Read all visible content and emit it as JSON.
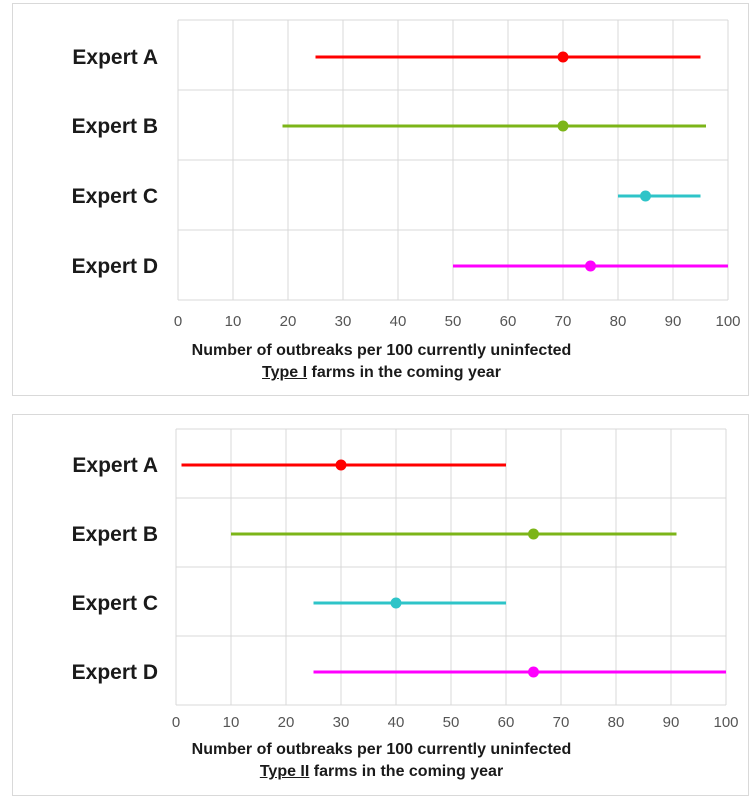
{
  "charts": [
    {
      "id": "type1",
      "xlabel_line1": "Number of outbreaks per 100 currently uninfected",
      "xlabel_type": "Type I",
      "xlabel_rest": " farms in the coming year",
      "ticks": [
        "0",
        "10",
        "20",
        "30",
        "40",
        "50",
        "60",
        "70",
        "80",
        "90",
        "100"
      ]
    },
    {
      "id": "type2",
      "xlabel_line1": "Number of outbreaks per 100 currently uninfected",
      "xlabel_type": "Type II",
      "xlabel_rest": " farms in the coming year",
      "ticks": [
        "0",
        "10",
        "20",
        "30",
        "40",
        "50",
        "60",
        "70",
        "80",
        "90",
        "100"
      ]
    }
  ],
  "chart_data": [
    {
      "type": "scatter",
      "title": "",
      "xlabel": "Number of outbreaks per 100 currently uninfected Type I farms in the coming year",
      "ylabel": "",
      "xlim": [
        0,
        100
      ],
      "grid": true,
      "categories": [
        "Expert A",
        "Expert B",
        "Expert C",
        "Expert D"
      ],
      "series": [
        {
          "category": "Expert A",
          "low": 25,
          "best": 70,
          "high": 95,
          "color": "#ff0000"
        },
        {
          "category": "Expert B",
          "low": 19,
          "best": 70,
          "high": 96,
          "color": "#7cb518"
        },
        {
          "category": "Expert C",
          "low": 80,
          "best": 85,
          "high": 95,
          "color": "#2ec4c8"
        },
        {
          "category": "Expert D",
          "low": 50,
          "best": 75,
          "high": 100,
          "color": "#ff00ff"
        }
      ]
    },
    {
      "type": "scatter",
      "title": "",
      "xlabel": "Number of outbreaks per 100 currently uninfected Type II farms in the coming year",
      "ylabel": "",
      "xlim": [
        0,
        100
      ],
      "grid": true,
      "categories": [
        "Expert A",
        "Expert B",
        "Expert C",
        "Expert D"
      ],
      "series": [
        {
          "category": "Expert A",
          "low": 1,
          "best": 30,
          "high": 60,
          "color": "#ff0000"
        },
        {
          "category": "Expert B",
          "low": 10,
          "best": 65,
          "high": 91,
          "color": "#7cb518"
        },
        {
          "category": "Expert C",
          "low": 25,
          "best": 40,
          "high": 60,
          "color": "#2ec4c8"
        },
        {
          "category": "Expert D",
          "low": 25,
          "best": 65,
          "high": 100,
          "color": "#ff00ff"
        }
      ]
    }
  ]
}
